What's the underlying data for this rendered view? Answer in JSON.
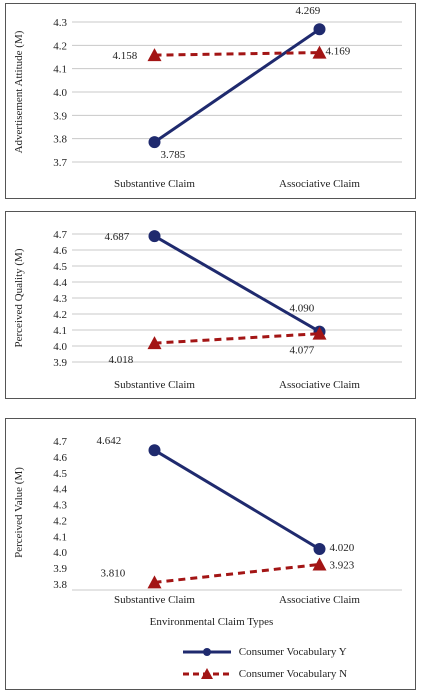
{
  "colors": {
    "series_y": "#1f2a6e",
    "series_n": "#a31515",
    "grid": "#c8c8c8"
  },
  "chart_data": [
    {
      "type": "line",
      "categories": [
        "Substantive Claim",
        "Associative Claim"
      ],
      "ylabel": "Advertisement Attitude (M)",
      "ylim": [
        3.7,
        4.3
      ],
      "yticks": [
        "4.3",
        "4.2",
        "4.1",
        "4.0",
        "3.9",
        "3.8",
        "3.7"
      ],
      "grid": true,
      "series": [
        {
          "name": "Consumer Vocabulary Y",
          "values": [
            3.785,
            4.269
          ],
          "labels": [
            "3.785",
            "4.269"
          ],
          "style": "solid-circle"
        },
        {
          "name": "Consumer Vocabulary N",
          "values": [
            4.158,
            4.169
          ],
          "labels": [
            "4.158",
            "4.169"
          ],
          "style": "dashed-triangle"
        }
      ]
    },
    {
      "type": "line",
      "categories": [
        "Substantive Claim",
        "Associative Claim"
      ],
      "ylabel": "Perceived Quality (M)",
      "ylim": [
        3.9,
        4.7
      ],
      "yticks": [
        "4.7",
        "4.6",
        "4.5",
        "4.4",
        "4.3",
        "4.2",
        "4.1",
        "4.0",
        "3.9"
      ],
      "grid": true,
      "series": [
        {
          "name": "Consumer Vocabulary Y",
          "values": [
            4.687,
            4.09
          ],
          "labels": [
            "4.687",
            "4.090"
          ],
          "style": "solid-circle"
        },
        {
          "name": "Consumer Vocabulary N",
          "values": [
            4.018,
            4.077
          ],
          "labels": [
            "4.018",
            "4.077"
          ],
          "style": "dashed-triangle"
        }
      ]
    },
    {
      "type": "line",
      "categories": [
        "Substantive Claim",
        "Associative Claim"
      ],
      "ylabel": "Perceived Value (M)",
      "xlabel": "Environmental Claim Types",
      "ylim": [
        3.8,
        4.7
      ],
      "yticks": [
        "4.7",
        "4.6",
        "4.5",
        "4.4",
        "4.3",
        "4.2",
        "4.1",
        "4.0",
        "3.9",
        "3.8"
      ],
      "grid": false,
      "legend_position": "bottom-right",
      "series": [
        {
          "name": "Consumer Vocabulary Y",
          "values": [
            4.642,
            4.02
          ],
          "labels": [
            "4.642",
            "4.020"
          ],
          "style": "solid-circle"
        },
        {
          "name": "Consumer Vocabulary N",
          "values": [
            3.81,
            3.923
          ],
          "labels": [
            "3.810",
            "3.923"
          ],
          "style": "dashed-triangle"
        }
      ]
    }
  ]
}
